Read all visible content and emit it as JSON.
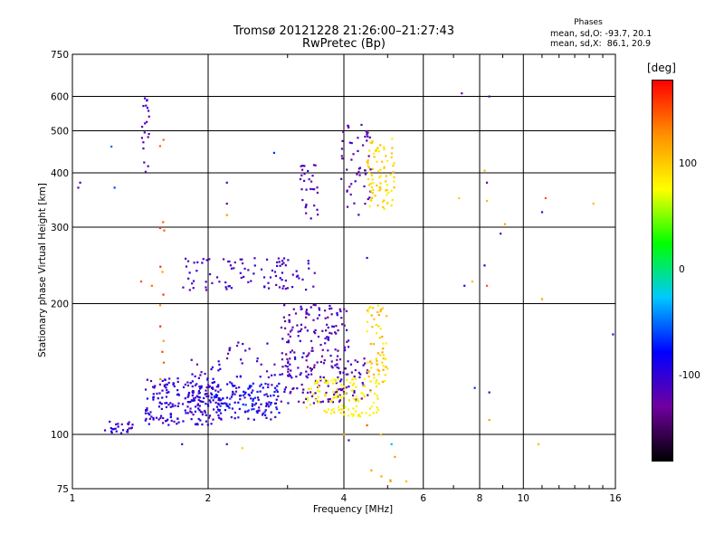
{
  "header": {
    "title_line1": "Tromsø 20121228 21:26:00–21:27:43",
    "title_line2": "RwPretec (Bp)",
    "phases_heading": "Phases",
    "phases_o": "mean, sd,O: -93.7, 20.1",
    "phases_x": "mean, sd,X:  86.1, 20.9"
  },
  "colorbar": {
    "unit": "[deg]",
    "ticks": [
      "100",
      "0",
      "-100"
    ],
    "tick_values": [
      100,
      0,
      -100
    ],
    "range": [
      -180,
      180
    ],
    "colors": [
      "#000000",
      "#7000a0",
      "#0000ff",
      "#00c8ff",
      "#00ff00",
      "#ffff00",
      "#ff9000",
      "#ff0000"
    ]
  },
  "chart_data": {
    "type": "scatter",
    "title": "Tromsø 20121228 21:26:00–21:27:43",
    "subtitle": "RwPretec (Bp)",
    "xlabel": "Frequency [MHz]",
    "ylabel": "Stationary phase Virtual Height [km]",
    "x_scale": "log",
    "y_scale": "log",
    "xlim": [
      1,
      16
    ],
    "ylim": [
      75,
      750
    ],
    "x_ticks": [
      "1",
      "2",
      "4",
      "6",
      "8",
      "10",
      "16"
    ],
    "x_tick_values": [
      1,
      2,
      4,
      6,
      8,
      10,
      16
    ],
    "y_ticks": [
      "750",
      "600",
      "500",
      "400",
      "300",
      "200",
      "100",
      "75"
    ],
    "y_tick_values": [
      750,
      600,
      500,
      400,
      300,
      200,
      100,
      75
    ],
    "grid": true,
    "point_groups": [
      {
        "component": "O",
        "f_range": [
          1.18,
          1.36
        ],
        "h_range": [
          100,
          108
        ],
        "phase_range": [
          -120,
          -80
        ],
        "count": 25
      },
      {
        "component": "O",
        "f_range": [
          1.45,
          2.05
        ],
        "h_range": [
          105,
          135
        ],
        "phase_range": [
          -120,
          -80
        ],
        "count": 180
      },
      {
        "component": "O",
        "f_range": [
          1.8,
          2.15
        ],
        "h_range": [
          112,
          152
        ],
        "phase_range": [
          -125,
          -85
        ],
        "count": 40
      },
      {
        "component": "O",
        "f_range": [
          2.05,
          2.9
        ],
        "h_range": [
          108,
          132
        ],
        "phase_range": [
          -115,
          -60
        ],
        "count": 150
      },
      {
        "component": "O",
        "f_range": [
          2.2,
          3.2
        ],
        "h_range": [
          135,
          165
        ],
        "phase_range": [
          -130,
          -90
        ],
        "count": 40
      },
      {
        "component": "O",
        "f_range": [
          2.9,
          4.1
        ],
        "h_range": [
          118,
          200
        ],
        "phase_range": [
          -140,
          -90
        ],
        "count": 200
      },
      {
        "component": "O",
        "f_range": [
          3.8,
          4.6
        ],
        "h_range": [
          120,
          150
        ],
        "phase_range": [
          -130,
          -95
        ],
        "count": 40
      },
      {
        "component": "O",
        "f_range": [
          1.75,
          3.45
        ],
        "h_range": [
          215,
          255
        ],
        "phase_range": [
          -125,
          -95
        ],
        "count": 95
      },
      {
        "component": "O",
        "f_range": [
          3.2,
          3.5
        ],
        "h_range": [
          310,
          420
        ],
        "phase_range": [
          -130,
          -100
        ],
        "count": 30
      },
      {
        "component": "O",
        "f_range": [
          3.9,
          4.6
        ],
        "h_range": [
          320,
          520
        ],
        "phase_range": [
          -130,
          -100
        ],
        "count": 50
      },
      {
        "component": "O",
        "f_range": [
          1.42,
          1.48
        ],
        "h_range": [
          390,
          600
        ],
        "phase_range": [
          -125,
          -100
        ],
        "count": 20
      },
      {
        "component": "X",
        "f_range": [
          3.3,
          4.8
        ],
        "h_range": [
          110,
          135
        ],
        "phase_range": [
          75,
          95
        ],
        "count": 120
      },
      {
        "component": "X",
        "f_range": [
          4.5,
          5.0
        ],
        "h_range": [
          130,
          200
        ],
        "phase_range": [
          80,
          120
        ],
        "count": 60
      },
      {
        "component": "X",
        "f_range": [
          4.5,
          5.2
        ],
        "h_range": [
          330,
          480
        ],
        "phase_range": [
          80,
          110
        ],
        "count": 80
      },
      {
        "component": "X",
        "f_range": [
          1.56,
          1.6
        ],
        "h_range": [
          100,
          480
        ],
        "phase_range": [
          120,
          165
        ],
        "count": 14
      },
      {
        "component": "X",
        "f_range": [
          4.5,
          5.3
        ],
        "h_range": [
          78,
          100
        ],
        "phase_range": [
          110,
          160
        ],
        "count": 6
      }
    ],
    "isolated_points": [
      {
        "f": 7.3,
        "h": 610,
        "phase": -120
      },
      {
        "f": 8.4,
        "h": 600,
        "phase": -110
      },
      {
        "f": 8.3,
        "h": 380,
        "phase": -120
      },
      {
        "f": 11.0,
        "h": 325,
        "phase": -110
      },
      {
        "f": 8.9,
        "h": 290,
        "phase": -115
      },
      {
        "f": 7.4,
        "h": 220,
        "phase": -100
      },
      {
        "f": 8.2,
        "h": 245,
        "phase": -75
      },
      {
        "f": 7.8,
        "h": 128,
        "phase": -65
      },
      {
        "f": 8.4,
        "h": 125,
        "phase": -110
      },
      {
        "f": 15.8,
        "h": 170,
        "phase": -110
      },
      {
        "f": 1.04,
        "h": 380,
        "phase": -110
      },
      {
        "f": 1.03,
        "h": 370,
        "phase": -115
      },
      {
        "f": 1.22,
        "h": 460,
        "phase": -50
      },
      {
        "f": 1.24,
        "h": 370,
        "phase": -60
      },
      {
        "f": 2.8,
        "h": 445,
        "phase": -65
      },
      {
        "f": 2.2,
        "h": 380,
        "phase": -110
      },
      {
        "f": 2.2,
        "h": 320,
        "phase": 125
      },
      {
        "f": 2.2,
        "h": 340,
        "phase": -120
      },
      {
        "f": 2.38,
        "h": 93,
        "phase": 100
      },
      {
        "f": 2.2,
        "h": 95,
        "phase": -110
      },
      {
        "f": 1.75,
        "h": 95,
        "phase": -110
      },
      {
        "f": 4.1,
        "h": 97,
        "phase": -110
      },
      {
        "f": 4.5,
        "h": 255,
        "phase": -110
      },
      {
        "f": 4.0,
        "h": 100,
        "phase": 120
      },
      {
        "f": 7.2,
        "h": 350,
        "phase": 100
      },
      {
        "f": 8.3,
        "h": 345,
        "phase": 110
      },
      {
        "f": 9.1,
        "h": 305,
        "phase": 120
      },
      {
        "f": 11.2,
        "h": 350,
        "phase": 150
      },
      {
        "f": 14.3,
        "h": 340,
        "phase": 110
      },
      {
        "f": 11.0,
        "h": 205,
        "phase": 120
      },
      {
        "f": 7.7,
        "h": 225,
        "phase": 110
      },
      {
        "f": 8.3,
        "h": 220,
        "phase": 150
      },
      {
        "f": 8.4,
        "h": 108,
        "phase": 120
      },
      {
        "f": 10.8,
        "h": 95,
        "phase": 110
      },
      {
        "f": 5.1,
        "h": 95,
        "phase": -30
      },
      {
        "f": 5.5,
        "h": 78,
        "phase": 110
      },
      {
        "f": 1.5,
        "h": 220,
        "phase": 140
      },
      {
        "f": 1.42,
        "h": 225,
        "phase": 150
      },
      {
        "f": 8.2,
        "h": 405,
        "phase": 110
      },
      {
        "f": 4.5,
        "h": 105,
        "phase": 150
      }
    ]
  }
}
